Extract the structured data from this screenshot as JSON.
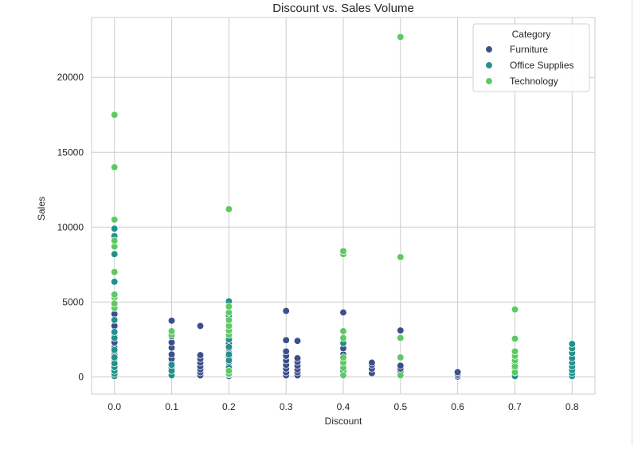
{
  "chart_data": {
    "type": "scatter",
    "title": "Discount vs. Sales Volume",
    "xlabel": "Discount",
    "ylabel": "Sales",
    "xlim": [
      -0.04,
      0.84
    ],
    "ylim": [
      -1150,
      24000
    ],
    "x_ticks": [
      0.0,
      0.1,
      0.2,
      0.3,
      0.4,
      0.5,
      0.6,
      0.7,
      0.8
    ],
    "x_tick_labels": [
      "0.0",
      "0.1",
      "0.2",
      "0.3",
      "0.4",
      "0.5",
      "0.6",
      "0.7",
      "0.8"
    ],
    "y_ticks": [
      0,
      5000,
      10000,
      15000,
      20000
    ],
    "y_tick_labels": [
      "0",
      "5000",
      "10000",
      "15000",
      "20000"
    ],
    "grid": true,
    "legend": {
      "title": "Category",
      "placement": "top-right"
    },
    "series": [
      {
        "name": "Furniture",
        "color": "#3b4f8a",
        "points": [
          [
            0.0,
            100
          ],
          [
            0.0,
            250
          ],
          [
            0.0,
            450
          ],
          [
            0.0,
            700
          ],
          [
            0.0,
            950
          ],
          [
            0.0,
            1200
          ],
          [
            0.0,
            1450
          ],
          [
            0.0,
            1700
          ],
          [
            0.0,
            1950
          ],
          [
            0.0,
            2300
          ],
          [
            0.0,
            2700
          ],
          [
            0.0,
            3400
          ],
          [
            0.0,
            4200
          ],
          [
            0.1,
            150
          ],
          [
            0.1,
            350
          ],
          [
            0.1,
            600
          ],
          [
            0.1,
            900
          ],
          [
            0.1,
            1200
          ],
          [
            0.1,
            1500
          ],
          [
            0.1,
            1950
          ],
          [
            0.1,
            2300
          ],
          [
            0.1,
            2700
          ],
          [
            0.1,
            3750
          ],
          [
            0.15,
            100
          ],
          [
            0.15,
            300
          ],
          [
            0.15,
            500
          ],
          [
            0.15,
            700
          ],
          [
            0.15,
            950
          ],
          [
            0.15,
            1200
          ],
          [
            0.15,
            1450
          ],
          [
            0.15,
            3400
          ],
          [
            0.2,
            50
          ],
          [
            0.2,
            200
          ],
          [
            0.2,
            450
          ],
          [
            0.2,
            700
          ],
          [
            0.2,
            1000
          ],
          [
            0.2,
            1300
          ],
          [
            0.2,
            1600
          ],
          [
            0.2,
            1900
          ],
          [
            0.2,
            2250
          ],
          [
            0.2,
            2600
          ],
          [
            0.2,
            3000
          ],
          [
            0.2,
            3500
          ],
          [
            0.2,
            4000
          ],
          [
            0.2,
            4350
          ],
          [
            0.3,
            100
          ],
          [
            0.3,
            300
          ],
          [
            0.3,
            550
          ],
          [
            0.3,
            800
          ],
          [
            0.3,
            1100
          ],
          [
            0.3,
            1400
          ],
          [
            0.3,
            1700
          ],
          [
            0.3,
            2450
          ],
          [
            0.3,
            4400
          ],
          [
            0.32,
            100
          ],
          [
            0.32,
            300
          ],
          [
            0.32,
            500
          ],
          [
            0.32,
            750
          ],
          [
            0.32,
            1000
          ],
          [
            0.32,
            1250
          ],
          [
            0.32,
            2400
          ],
          [
            0.4,
            350
          ],
          [
            0.4,
            700
          ],
          [
            0.4,
            1100
          ],
          [
            0.4,
            1500
          ],
          [
            0.4,
            1900
          ],
          [
            0.4,
            2300
          ],
          [
            0.4,
            4300
          ],
          [
            0.45,
            250
          ],
          [
            0.45,
            550
          ],
          [
            0.45,
            800
          ],
          [
            0.45,
            950
          ],
          [
            0.5,
            100
          ],
          [
            0.5,
            250
          ],
          [
            0.5,
            400
          ],
          [
            0.5,
            550
          ],
          [
            0.5,
            750
          ],
          [
            0.5,
            3100
          ],
          [
            0.6,
            20
          ],
          [
            0.6,
            120
          ],
          [
            0.6,
            220
          ],
          [
            0.6,
            320
          ]
        ]
      },
      {
        "name": "Office Supplies",
        "color": "#21918c",
        "points": [
          [
            0.0,
            50
          ],
          [
            0.0,
            200
          ],
          [
            0.0,
            400
          ],
          [
            0.0,
            650
          ],
          [
            0.0,
            900
          ],
          [
            0.0,
            1300
          ],
          [
            0.0,
            1800
          ],
          [
            0.0,
            2600
          ],
          [
            0.0,
            3000
          ],
          [
            0.0,
            3800
          ],
          [
            0.0,
            6350
          ],
          [
            0.0,
            8200
          ],
          [
            0.0,
            9400
          ],
          [
            0.0,
            9900
          ],
          [
            0.1,
            100
          ],
          [
            0.1,
            400
          ],
          [
            0.1,
            800
          ],
          [
            0.2,
            150
          ],
          [
            0.2,
            600
          ],
          [
            0.2,
            1100
          ],
          [
            0.2,
            1500
          ],
          [
            0.2,
            2000
          ],
          [
            0.2,
            2500
          ],
          [
            0.2,
            4100
          ],
          [
            0.2,
            5050
          ],
          [
            0.4,
            400
          ],
          [
            0.4,
            2250
          ],
          [
            0.7,
            50
          ],
          [
            0.7,
            300
          ],
          [
            0.7,
            550
          ],
          [
            0.7,
            900
          ],
          [
            0.7,
            1200
          ],
          [
            0.8,
            50
          ],
          [
            0.8,
            250
          ],
          [
            0.8,
            450
          ],
          [
            0.8,
            700
          ],
          [
            0.8,
            950
          ],
          [
            0.8,
            1250
          ],
          [
            0.8,
            1600
          ],
          [
            0.8,
            1900
          ],
          [
            0.8,
            2200
          ]
        ]
      },
      {
        "name": "Technology",
        "color": "#5ec962",
        "points": [
          [
            0.0,
            5300
          ],
          [
            0.0,
            5500
          ],
          [
            0.0,
            7000
          ],
          [
            0.0,
            8700
          ],
          [
            0.0,
            9100
          ],
          [
            0.0,
            10500
          ],
          [
            0.0,
            14000
          ],
          [
            0.0,
            17500
          ],
          [
            0.0,
            4600
          ],
          [
            0.0,
            4900
          ],
          [
            0.1,
            2800
          ],
          [
            0.1,
            3050
          ],
          [
            0.2,
            200
          ],
          [
            0.2,
            400
          ],
          [
            0.2,
            2800
          ],
          [
            0.2,
            3100
          ],
          [
            0.2,
            3400
          ],
          [
            0.2,
            3800
          ],
          [
            0.2,
            4300
          ],
          [
            0.2,
            4700
          ],
          [
            0.2,
            11200
          ],
          [
            0.4,
            100
          ],
          [
            0.4,
            600
          ],
          [
            0.4,
            950
          ],
          [
            0.4,
            1300
          ],
          [
            0.4,
            2600
          ],
          [
            0.4,
            3050
          ],
          [
            0.4,
            8200
          ],
          [
            0.4,
            8400
          ],
          [
            0.5,
            100
          ],
          [
            0.5,
            1300
          ],
          [
            0.5,
            2600
          ],
          [
            0.5,
            8000
          ],
          [
            0.5,
            22700
          ],
          [
            0.7,
            300
          ],
          [
            0.7,
            700
          ],
          [
            0.7,
            1100
          ],
          [
            0.7,
            1400
          ],
          [
            0.7,
            1700
          ],
          [
            0.7,
            2550
          ],
          [
            0.7,
            4500
          ]
        ]
      }
    ]
  }
}
